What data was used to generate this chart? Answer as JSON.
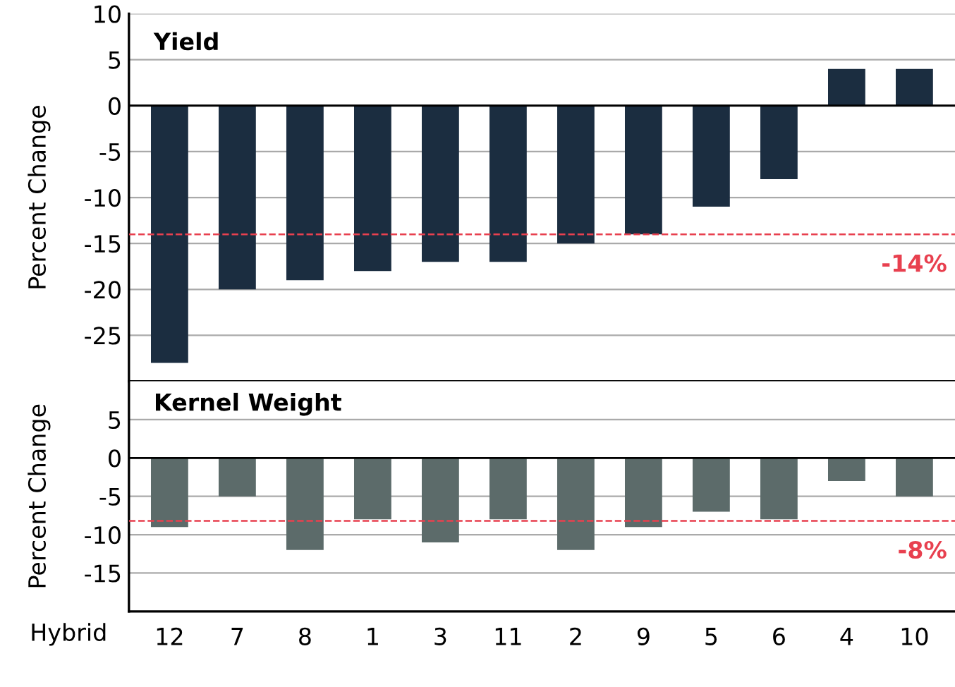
{
  "chart_data": [
    {
      "type": "bar",
      "title": "Yield",
      "ylabel": "Percent Change",
      "categories": [
        "12",
        "7",
        "8",
        "1",
        "3",
        "11",
        "2",
        "9",
        "5",
        "6",
        "4",
        "10"
      ],
      "series": [
        {
          "color": "#1b2d40",
          "values": [
            -28,
            -20,
            -19,
            -18,
            -17,
            -17,
            -15,
            -14,
            -11,
            -8,
            4,
            4
          ]
        }
      ],
      "ylim": [
        -30,
        10
      ],
      "yticks": [
        10,
        5,
        0,
        -5,
        -10,
        -15,
        -20,
        -25
      ],
      "grid": "y",
      "tick_labels": "y",
      "ref_lines": [
        {
          "axis": "y",
          "value": -14,
          "label": "-14%",
          "color": "#e8404f",
          "line_style": "dashed"
        }
      ]
    },
    {
      "type": "bar",
      "title": "Kernel Weight",
      "ylabel": "Percent Change",
      "xlabel": "Hybrid",
      "categories": [
        "12",
        "7",
        "8",
        "1",
        "3",
        "11",
        "2",
        "9",
        "5",
        "6",
        "4",
        "10"
      ],
      "series": [
        {
          "color": "#5c6b6a",
          "values": [
            -9,
            -5,
            -12,
            -8,
            -11,
            -8,
            -12,
            -9,
            -7,
            -8,
            -3,
            -5
          ]
        }
      ],
      "ylim": [
        -20,
        10
      ],
      "yticks": [
        5,
        0,
        -5,
        -10,
        -15
      ],
      "grid": "y",
      "ref_lines": [
        {
          "axis": "y",
          "value": -8.2,
          "label": "-8%",
          "color": "#e8404f",
          "line_style": "dashed"
        }
      ]
    }
  ]
}
